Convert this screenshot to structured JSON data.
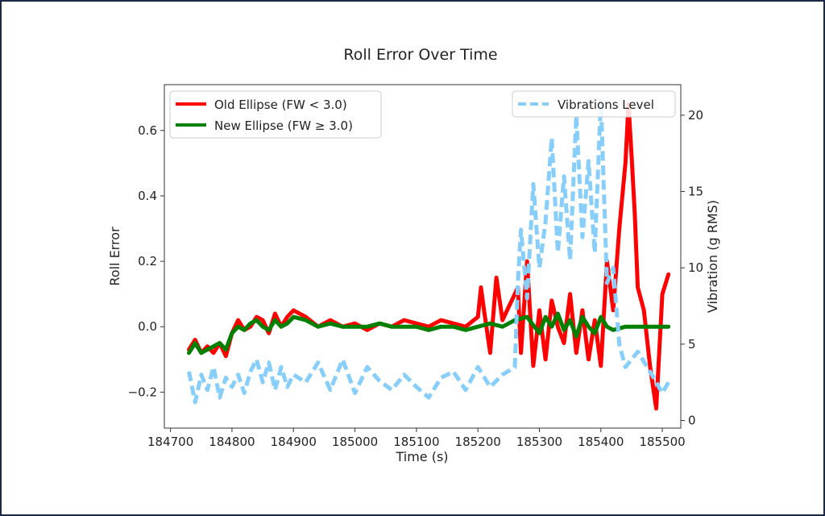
{
  "chart_data": {
    "type": "line",
    "title": "Roll Error Over Time",
    "xlabel": "Time (s)",
    "ylabel": "Roll Error",
    "y2label": "Vibration (g RMS)",
    "xlim": [
      184690,
      185530
    ],
    "ylim": [
      -0.31,
      0.74
    ],
    "y2lim": [
      -0.5,
      22
    ],
    "x_ticks": [
      184700,
      184800,
      184900,
      185000,
      185100,
      185200,
      185300,
      185400,
      185500
    ],
    "x_tick_labels": [
      "184700",
      "184800",
      "184900",
      "185000",
      "185100",
      "185200",
      "185300",
      "185400",
      "185500"
    ],
    "y_ticks": [
      -0.2,
      0.0,
      0.2,
      0.4,
      0.6
    ],
    "y_tick_labels": [
      "−0.2",
      "0.0",
      "0.2",
      "0.4",
      "0.6"
    ],
    "y2_ticks": [
      0,
      5,
      10,
      15,
      20
    ],
    "y2_tick_labels": [
      "0",
      "5",
      "10",
      "15",
      "20"
    ],
    "grid": false,
    "legend_left": {
      "placement": "top-left",
      "entries": [
        "Old Ellipse (FW < 3.0)",
        "New Ellipse (FW ≥ 3.0)"
      ]
    },
    "legend_right": {
      "placement": "top-right",
      "entries": [
        "Vibrations Level"
      ]
    },
    "series": [
      {
        "name": "Old Ellipse (FW < 3.0)",
        "axis": "left",
        "color": "#ff0000",
        "style": "solid",
        "x": [
          184730,
          184740,
          184750,
          184760,
          184770,
          184780,
          184790,
          184800,
          184810,
          184820,
          184830,
          184840,
          184850,
          184860,
          184870,
          184880,
          184890,
          184900,
          184920,
          184940,
          184960,
          184980,
          185000,
          185020,
          185040,
          185060,
          185080,
          185100,
          185120,
          185140,
          185160,
          185180,
          185200,
          185205,
          185210,
          185220,
          185230,
          185240,
          185250,
          185260,
          185265,
          185270,
          185280,
          185290,
          185300,
          185310,
          185320,
          185330,
          185340,
          185350,
          185360,
          185370,
          185380,
          185390,
          185400,
          185410,
          185420,
          185430,
          185440,
          185445,
          185450,
          185455,
          185460,
          185470,
          185480,
          185490,
          185500,
          185510
        ],
        "values": [
          -0.07,
          -0.04,
          -0.08,
          -0.06,
          -0.08,
          -0.05,
          -0.09,
          -0.02,
          0.02,
          -0.01,
          0.0,
          0.03,
          0.02,
          -0.02,
          0.04,
          0.0,
          0.03,
          0.05,
          0.03,
          0.0,
          0.02,
          0.0,
          0.01,
          -0.01,
          0.01,
          0.0,
          0.02,
          0.01,
          0.0,
          0.02,
          0.01,
          0.0,
          0.03,
          0.12,
          0.05,
          -0.08,
          0.15,
          0.02,
          0.06,
          0.1,
          0.12,
          -0.08,
          0.2,
          -0.12,
          0.05,
          -0.1,
          0.08,
          0.0,
          -0.05,
          0.1,
          -0.08,
          0.05,
          -0.1,
          0.02,
          -0.12,
          0.2,
          0.05,
          0.3,
          0.5,
          0.68,
          0.52,
          0.35,
          0.12,
          0.05,
          -0.12,
          -0.25,
          0.1,
          0.16
        ]
      },
      {
        "name": "New Ellipse (FW ≥ 3.0)",
        "axis": "left",
        "color": "#008000",
        "style": "solid",
        "x": [
          184730,
          184740,
          184750,
          184760,
          184770,
          184780,
          184790,
          184800,
          184810,
          184820,
          184830,
          184840,
          184850,
          184860,
          184870,
          184880,
          184890,
          184900,
          184920,
          184940,
          184960,
          184980,
          185000,
          185020,
          185040,
          185060,
          185080,
          185100,
          185120,
          185140,
          185160,
          185180,
          185200,
          185220,
          185240,
          185260,
          185280,
          185300,
          185310,
          185320,
          185330,
          185340,
          185350,
          185360,
          185370,
          185380,
          185390,
          185400,
          185410,
          185420,
          185440,
          185460,
          185480,
          185500,
          185510
        ],
        "values": [
          -0.08,
          -0.05,
          -0.08,
          -0.07,
          -0.06,
          -0.05,
          -0.07,
          -0.02,
          0.0,
          -0.01,
          0.01,
          0.02,
          0.0,
          -0.01,
          0.02,
          0.0,
          0.01,
          0.03,
          0.02,
          0.0,
          0.01,
          0.0,
          0.0,
          0.0,
          0.01,
          0.0,
          0.0,
          0.0,
          -0.01,
          0.0,
          0.0,
          -0.01,
          0.0,
          0.01,
          0.0,
          0.02,
          0.03,
          -0.02,
          0.03,
          0.0,
          0.04,
          -0.01,
          0.02,
          -0.03,
          0.03,
          0.0,
          -0.02,
          0.03,
          0.0,
          -0.01,
          0.0,
          0.0,
          0.0,
          0.0,
          0.0
        ]
      },
      {
        "name": "Vibrations Level",
        "axis": "right",
        "color": "#87cefa",
        "style": "dashed",
        "x": [
          184730,
          184740,
          184750,
          184760,
          184770,
          184780,
          184790,
          184800,
          184810,
          184820,
          184830,
          184840,
          184850,
          184860,
          184870,
          184880,
          184890,
          184900,
          184920,
          184940,
          184960,
          184980,
          185000,
          185020,
          185040,
          185060,
          185080,
          185100,
          185120,
          185140,
          185160,
          185180,
          185200,
          185220,
          185240,
          185260,
          185265,
          185270,
          185280,
          185290,
          185300,
          185310,
          185320,
          185330,
          185340,
          185350,
          185360,
          185370,
          185380,
          185390,
          185400,
          185410,
          185420,
          185430,
          185440,
          185460,
          185480,
          185500,
          185510
        ],
        "values": [
          3.2,
          1.2,
          3.0,
          2.0,
          3.5,
          1.5,
          2.8,
          2.2,
          3.0,
          1.8,
          3.2,
          4.0,
          2.5,
          3.8,
          2.0,
          3.5,
          2.2,
          3.0,
          2.5,
          3.8,
          2.0,
          4.0,
          1.8,
          3.5,
          2.6,
          2.0,
          3.0,
          2.2,
          1.5,
          2.8,
          3.2,
          2.0,
          3.5,
          2.2,
          3.0,
          3.5,
          9.0,
          12.5,
          8.0,
          15.5,
          10.0,
          13.0,
          18.5,
          11.0,
          16.0,
          10.5,
          20.0,
          12.0,
          17.0,
          11.0,
          21.0,
          9.0,
          10.0,
          5.0,
          3.5,
          4.5,
          3.2,
          1.8,
          2.5
        ]
      }
    ]
  }
}
